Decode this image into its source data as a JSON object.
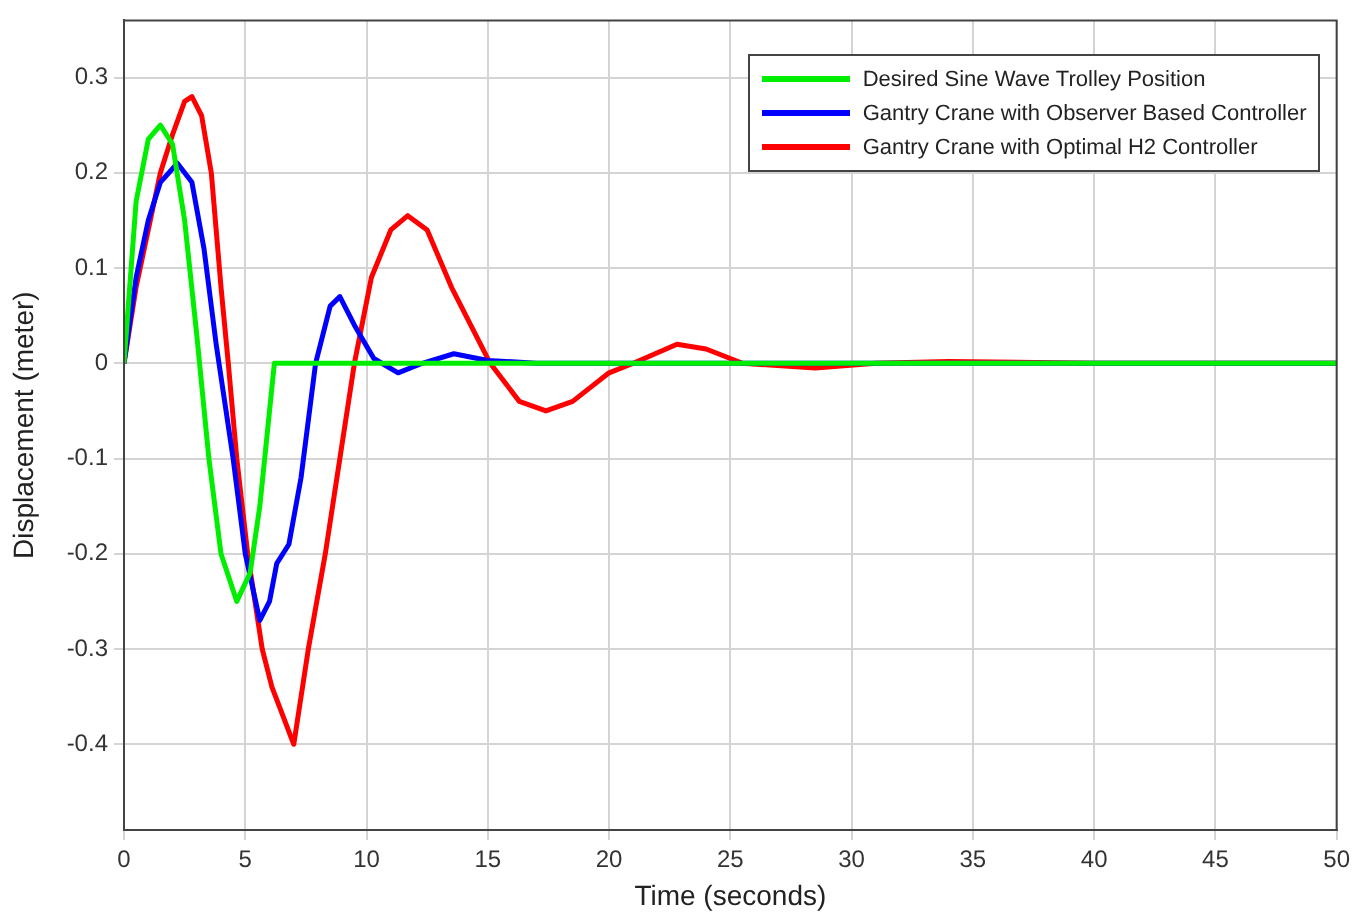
{
  "chart_data": {
    "type": "line",
    "xlabel": "Time (seconds)",
    "ylabel": "Displacement (meter)",
    "xlim": [
      0,
      50
    ],
    "xticks": [
      0,
      5,
      10,
      15,
      20,
      25,
      30,
      35,
      40,
      45,
      50
    ],
    "ylim": [
      -0.49,
      0.36
    ],
    "yticks": [
      -0.4,
      -0.3,
      -0.2,
      -0.1,
      0,
      0.1,
      0.2,
      0.3
    ],
    "grid": true,
    "legend": "top right",
    "marker": "none",
    "line_style": "solid",
    "series": [
      {
        "name": "Desired Sine Wave Trolley Position",
        "color": "#00ee00",
        "x": [
          0,
          0.5,
          1,
          1.5,
          2,
          2.5,
          3,
          3.5,
          4,
          4.65,
          5.2,
          5.6,
          6.0,
          6.2,
          50
        ],
        "values": [
          0,
          0.17,
          0.235,
          0.25,
          0.23,
          0.15,
          0.03,
          -0.1,
          -0.2,
          -0.25,
          -0.22,
          -0.15,
          -0.05,
          0,
          0
        ]
      },
      {
        "name": "Gantry Crane with Observer Based Controller",
        "color": "#0000ff",
        "x": [
          0,
          0.5,
          1,
          1.5,
          2.2,
          2.8,
          3.3,
          3.8,
          4.5,
          5.0,
          5.6,
          6.0,
          6.3,
          6.8,
          7.3,
          7.9,
          8.5,
          8.9,
          9.5,
          10.3,
          11.3,
          12.3,
          13.6,
          15,
          17,
          50
        ],
        "values": [
          0,
          0.09,
          0.15,
          0.19,
          0.21,
          0.19,
          0.12,
          0.02,
          -0.1,
          -0.2,
          -0.27,
          -0.25,
          -0.21,
          -0.19,
          -0.12,
          0,
          0.06,
          0.07,
          0.04,
          0.005,
          -0.01,
          0,
          0.01,
          0.003,
          0,
          0
        ]
      },
      {
        "name": "Gantry Crane with Optimal H2 Controller",
        "color": "#ff0000",
        "x": [
          0,
          0.5,
          1,
          1.5,
          2,
          2.5,
          2.8,
          3.2,
          3.6,
          4.0,
          4.3,
          4.65,
          5.1,
          5.7,
          6.1,
          6.4,
          7.0,
          7.6,
          8.3,
          8.9,
          9.5,
          10.2,
          11,
          11.7,
          12.5,
          13.5,
          15.1,
          16.3,
          17.4,
          18.5,
          20,
          21,
          22.8,
          24,
          25.5,
          28.5,
          31,
          34,
          40,
          50
        ],
        "values": [
          0,
          0.08,
          0.14,
          0.2,
          0.24,
          0.275,
          0.28,
          0.26,
          0.2,
          0.08,
          0,
          -0.1,
          -0.2,
          -0.3,
          -0.34,
          -0.36,
          -0.4,
          -0.3,
          -0.2,
          -0.1,
          0,
          0.09,
          0.14,
          0.155,
          0.14,
          0.08,
          0,
          -0.04,
          -0.05,
          -0.04,
          -0.01,
          0,
          0.02,
          0.015,
          0,
          -0.005,
          0,
          0.002,
          0,
          0
        ]
      }
    ]
  }
}
